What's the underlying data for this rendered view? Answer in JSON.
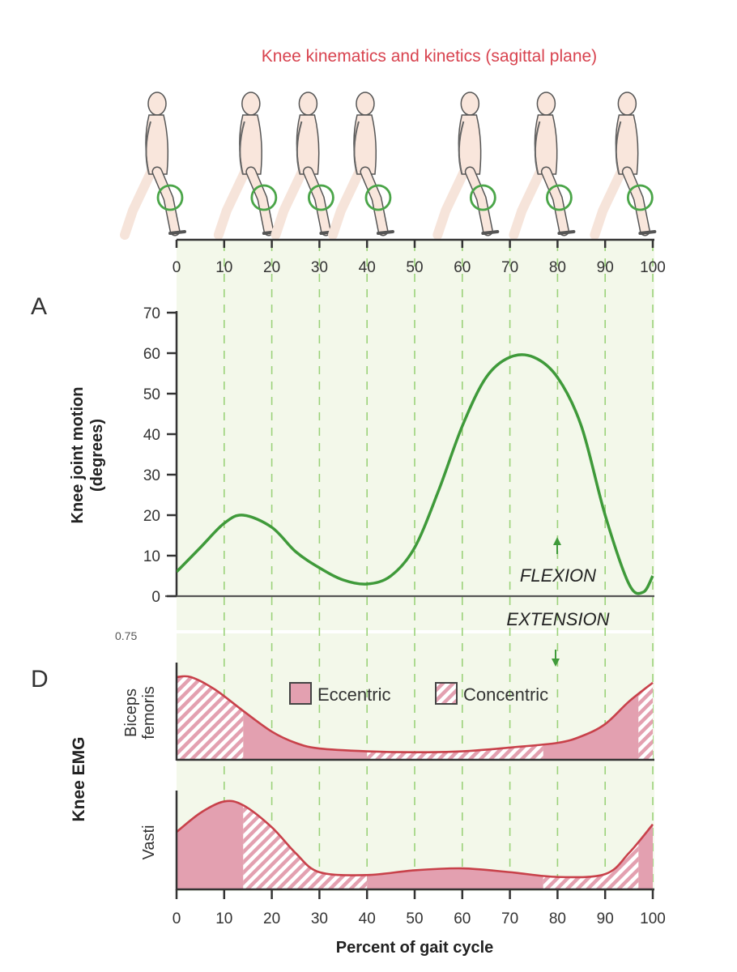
{
  "figure": {
    "title": "Knee kinematics and kinetics (sagittal plane)",
    "panel_a_label": "A",
    "panel_d_label": "D",
    "colors": {
      "title": "#d8434f",
      "angle_curve": "#3f9a3a",
      "knee_circle": "#4aa548",
      "grid_dash": "#9bd27a",
      "plot_bg": "#f3f8ea",
      "emg_fill": "#e3a0b0",
      "emg_line": "#c8414a",
      "figure_skin": "#f9e6dc"
    },
    "top_axis": {
      "ticks": [
        "0",
        "10",
        "20",
        "30",
        "40",
        "50",
        "60",
        "70",
        "80",
        "90",
        "100"
      ]
    },
    "walker_figures": {
      "count": 7,
      "knee_marker": "green-circle",
      "positions_percent": [
        0,
        18,
        30,
        42,
        64,
        80,
        97
      ]
    },
    "stray_text": "0.75"
  },
  "chart_data": [
    {
      "type": "line",
      "panel": "A",
      "title": "Knee kinematics and kinetics (sagittal plane)",
      "xlabel": "Percent of gait cycle",
      "ylabel_line1": "Knee joint motion",
      "ylabel_line2": "(degrees)",
      "xlim": [
        0,
        100
      ],
      "ylim": [
        0,
        70
      ],
      "x_ticks": [
        0,
        10,
        20,
        30,
        40,
        50,
        60,
        70,
        80,
        90,
        100
      ],
      "y_ticks": [
        "0",
        "10",
        "20",
        "30",
        "40",
        "50",
        "60",
        "70"
      ],
      "grid": "vertical dashed every 10%",
      "annotations": {
        "above": "FLEXION",
        "below": "EXTENSION"
      },
      "series": [
        {
          "name": "Knee angle",
          "x": [
            0,
            5,
            10,
            14,
            20,
            25,
            30,
            35,
            40,
            45,
            50,
            55,
            60,
            65,
            70,
            75,
            80,
            85,
            90,
            95,
            98,
            100
          ],
          "y": [
            6,
            12,
            18,
            20,
            17,
            11,
            7,
            4,
            3,
            5,
            12,
            26,
            42,
            54,
            59,
            59,
            54,
            42,
            20,
            3,
            1,
            5
          ]
        }
      ]
    },
    {
      "type": "area",
      "panel": "D",
      "ylabel": "Knee EMG",
      "xlabel": "Percent of gait cycle",
      "xlim": [
        0,
        100
      ],
      "x_ticks": [
        "0",
        "10",
        "20",
        "30",
        "40",
        "50",
        "60",
        "70",
        "80",
        "90",
        "100"
      ],
      "legend": [
        {
          "label": "Eccentric",
          "style": "solid"
        },
        {
          "label": "Concentric",
          "style": "hatched"
        }
      ],
      "series": [
        {
          "name": "Biceps femoris",
          "label_line1": "Biceps",
          "label_line2": "femoris",
          "x": [
            0,
            3,
            8,
            14,
            20,
            25,
            30,
            40,
            50,
            60,
            70,
            80,
            85,
            90,
            95,
            100
          ],
          "y": [
            0.88,
            0.88,
            0.75,
            0.52,
            0.3,
            0.18,
            0.12,
            0.09,
            0.08,
            0.09,
            0.13,
            0.18,
            0.25,
            0.38,
            0.62,
            0.82
          ],
          "segments": [
            {
              "from": 0,
              "to": 14,
              "type": "Concentric"
            },
            {
              "from": 14,
              "to": 40,
              "type": "Eccentric"
            },
            {
              "from": 40,
              "to": 77,
              "type": "Concentric"
            },
            {
              "from": 77,
              "to": 97,
              "type": "Eccentric"
            },
            {
              "from": 97,
              "to": 100,
              "type": "Concentric"
            }
          ]
        },
        {
          "name": "Vasti",
          "label_line1": "Vasti",
          "x": [
            0,
            5,
            10,
            14,
            20,
            25,
            30,
            40,
            50,
            60,
            70,
            80,
            90,
            95,
            100
          ],
          "y": [
            0.6,
            0.8,
            0.92,
            0.88,
            0.65,
            0.38,
            0.18,
            0.15,
            0.2,
            0.22,
            0.18,
            0.13,
            0.16,
            0.38,
            0.68
          ],
          "segments": [
            {
              "from": 0,
              "to": 14,
              "type": "Eccentric"
            },
            {
              "from": 14,
              "to": 40,
              "type": "Concentric"
            },
            {
              "from": 40,
              "to": 77,
              "type": "Eccentric"
            },
            {
              "from": 77,
              "to": 97,
              "type": "Concentric"
            },
            {
              "from": 97,
              "to": 100,
              "type": "Eccentric"
            }
          ]
        }
      ]
    }
  ]
}
